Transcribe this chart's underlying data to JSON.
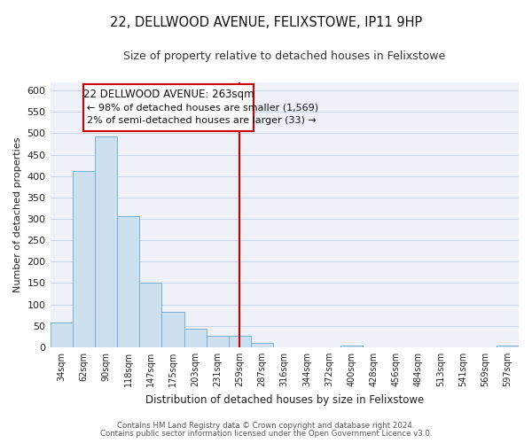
{
  "title": "22, DELLWOOD AVENUE, FELIXSTOWE, IP11 9HP",
  "subtitle": "Size of property relative to detached houses in Felixstowe",
  "xlabel": "Distribution of detached houses by size in Felixstowe",
  "ylabel": "Number of detached properties",
  "bar_color": "#cce0f0",
  "bar_edge_color": "#7ab0d4",
  "bin_labels": [
    "34sqm",
    "62sqm",
    "90sqm",
    "118sqm",
    "147sqm",
    "175sqm",
    "203sqm",
    "231sqm",
    "259sqm",
    "287sqm",
    "316sqm",
    "344sqm",
    "372sqm",
    "400sqm",
    "428sqm",
    "456sqm",
    "484sqm",
    "513sqm",
    "541sqm",
    "569sqm",
    "597sqm"
  ],
  "bar_heights": [
    57,
    411,
    493,
    307,
    150,
    82,
    44,
    26,
    26,
    10,
    0,
    0,
    0,
    3,
    0,
    0,
    0,
    0,
    0,
    0,
    3
  ],
  "ylim": [
    0,
    620
  ],
  "yticks": [
    0,
    50,
    100,
    150,
    200,
    250,
    300,
    350,
    400,
    450,
    500,
    550,
    600
  ],
  "vline_x_index": 8,
  "vline_color": "#cc0000",
  "annotation_title": "22 DELLWOOD AVENUE: 263sqm",
  "annotation_line1": "← 98% of detached houses are smaller (1,569)",
  "annotation_line2": "2% of semi-detached houses are larger (33) →",
  "annotation_box_color": "#ffffff",
  "annotation_box_edge_color": "#cc0000",
  "footer_line1": "Contains HM Land Registry data © Crown copyright and database right 2024.",
  "footer_line2": "Contains public sector information licensed under the Open Government Licence v3.0.",
  "background_color": "#ffffff",
  "grid_color": "#c8d4e8",
  "plot_bg_color": "#eef2f8"
}
